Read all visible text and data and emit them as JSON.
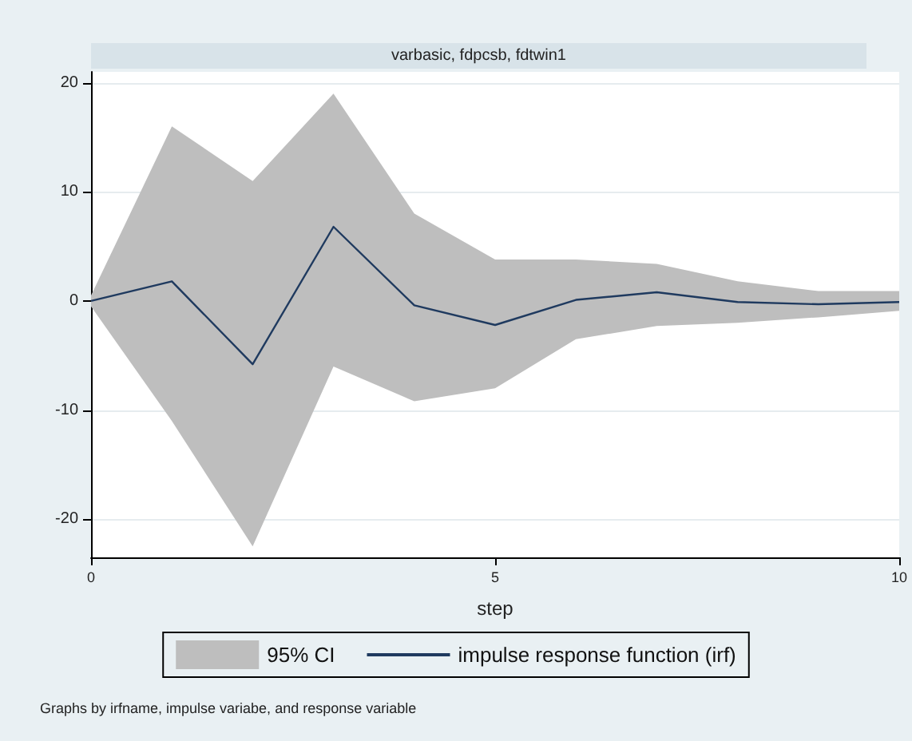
{
  "chart_data": {
    "type": "line",
    "title": "varbasic, fdpcsb, fdtwin1",
    "xlabel": "step",
    "x": [
      0,
      1,
      2,
      3,
      4,
      5,
      6,
      7,
      8,
      9,
      10
    ],
    "series": [
      {
        "type": "area",
        "name": "95% CI",
        "color": "#bebebe",
        "values": [
          null,
          null,
          null,
          null,
          null,
          null,
          null,
          null,
          null,
          null,
          null
        ],
        "lower": [
          -0.5,
          -11,
          -22.5,
          -6,
          -9.2,
          -8,
          -3.5,
          -2.3,
          -2,
          -1.5,
          -0.9
        ],
        "upper": [
          0.5,
          16,
          11,
          19,
          8,
          3.8,
          3.8,
          3.4,
          1.8,
          0.9,
          0.9
        ]
      },
      {
        "type": "line",
        "name": "impulse response function (irf)",
        "color": "#1f3a5f",
        "values": [
          0,
          1.8,
          -5.8,
          6.8,
          -0.4,
          -2.2,
          0.1,
          0.8,
          -0.1,
          -0.3,
          -0.1
        ]
      }
    ],
    "xlim": [
      0,
      10
    ],
    "xticks": [
      0,
      5,
      10
    ],
    "ylim": [
      -23.5,
      21
    ],
    "yticks": [
      -20,
      -10,
      0,
      10,
      20
    ],
    "grid": "y",
    "legend": "bottom",
    "marker": "none",
    "line_style": "solid",
    "annotations": [
      "Graphs by irfname, impulse variabe, and response variable"
    ]
  }
}
